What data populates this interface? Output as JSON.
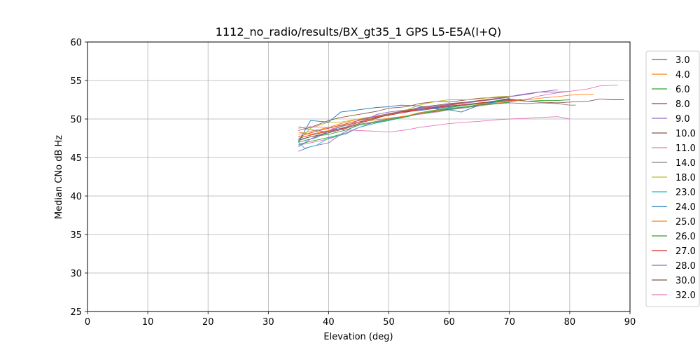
{
  "chart_data": {
    "type": "line",
    "title": "1112_no_radio/results/BX_gt35_1 GPS L5-E5A(I+Q)",
    "xlabel": "Elevation (deg)",
    "ylabel": "Median CNo dB Hz",
    "xlim": [
      0,
      90
    ],
    "ylim": [
      25,
      60
    ],
    "xticks": [
      0,
      10,
      20,
      30,
      40,
      50,
      60,
      70,
      80,
      90
    ],
    "yticks": [
      25,
      30,
      35,
      40,
      45,
      50,
      55,
      60
    ],
    "grid": true,
    "legend_position": "right",
    "series": [
      {
        "name": "3.0",
        "color": "#1f77b4",
        "x": [
          35,
          38,
          40,
          42,
          45,
          48,
          50,
          52,
          55,
          58,
          60,
          62,
          65,
          68,
          70
        ],
        "y": [
          47.0,
          47.6,
          48.4,
          49.0,
          49.6,
          50.2,
          50.6,
          50.9,
          51.1,
          51.4,
          51.6,
          51.8,
          52.0,
          52.3,
          52.7
        ]
      },
      {
        "name": "4.0",
        "color": "#ff7f0e",
        "x": [
          35,
          37,
          40,
          42,
          45,
          48,
          50,
          52,
          55,
          58,
          60,
          63,
          66,
          68,
          70
        ],
        "y": [
          48.0,
          48.4,
          48.9,
          49.4,
          50.0,
          50.4,
          50.6,
          51.0,
          51.4,
          51.7,
          51.9,
          52.2,
          52.5,
          52.7,
          52.8
        ]
      },
      {
        "name": "6.0",
        "color": "#2ca02c",
        "x": [
          35,
          37,
          40,
          43,
          45,
          48,
          50,
          53,
          55,
          58,
          60,
          63,
          65,
          68,
          70,
          73,
          75,
          78,
          80
        ],
        "y": [
          46.7,
          47.1,
          47.6,
          48.2,
          48.9,
          49.5,
          49.8,
          50.4,
          50.8,
          51.2,
          51.5,
          51.8,
          52.0,
          52.4,
          52.5,
          52.3,
          52.4,
          52.4,
          52.5
        ]
      },
      {
        "name": "8.0",
        "color": "#d62728",
        "x": [
          35,
          37,
          40,
          42,
          45,
          48,
          50,
          53,
          55,
          58,
          60,
          63,
          65,
          68
        ],
        "y": [
          47.7,
          48.2,
          48.8,
          49.2,
          49.8,
          50.3,
          50.7,
          51.0,
          51.3,
          51.5,
          51.8,
          52.1,
          52.3,
          52.6
        ]
      },
      {
        "name": "9.0",
        "color": "#9467bd",
        "x": [
          35,
          37,
          40,
          42,
          45,
          48,
          50,
          53,
          55,
          58,
          60,
          63,
          65,
          68,
          70,
          72,
          75,
          78,
          80
        ],
        "y": [
          45.8,
          46.4,
          46.9,
          48.0,
          49.4,
          50.6,
          50.9,
          51.2,
          51.3,
          51.6,
          51.9,
          52.1,
          52.3,
          52.7,
          52.9,
          53.2,
          53.5,
          53.5,
          53.6
        ]
      },
      {
        "name": "10.0",
        "color": "#8c564b",
        "x": [
          35,
          37,
          40,
          42,
          45,
          48,
          50,
          53,
          55,
          58,
          60,
          63,
          65,
          68,
          70
        ],
        "y": [
          48.5,
          48.9,
          49.8,
          50.2,
          50.6,
          51.0,
          51.4,
          51.6,
          52.0,
          52.3,
          52.2,
          52.5,
          52.7,
          52.8,
          52.9
        ]
      },
      {
        "name": "11.0",
        "color": "#e377c2",
        "x": [
          35,
          37,
          40,
          42,
          45,
          48,
          50,
          53,
          55,
          58,
          60,
          63,
          65,
          68,
          70,
          73,
          75,
          78,
          80,
          83,
          85,
          88
        ],
        "y": [
          46.6,
          46.9,
          47.4,
          47.9,
          48.9,
          49.7,
          50.1,
          50.4,
          50.6,
          50.9,
          51.2,
          51.5,
          51.7,
          52.0,
          52.2,
          52.6,
          53.0,
          53.4,
          53.6,
          53.9,
          54.3,
          54.4
        ]
      },
      {
        "name": "14.0",
        "color": "#7f7f7f",
        "x": [
          35,
          37,
          40,
          42,
          45,
          48,
          50,
          53,
          55,
          58,
          60,
          63,
          65,
          68,
          70,
          73,
          75,
          78,
          80,
          81
        ],
        "y": [
          49.0,
          48.6,
          48.3,
          48.7,
          49.3,
          49.7,
          50.0,
          50.4,
          50.7,
          51.0,
          51.2,
          51.5,
          51.8,
          52.0,
          52.1,
          52.0,
          52.1,
          52.0,
          51.8,
          51.8
        ]
      },
      {
        "name": "18.0",
        "color": "#bcbd22",
        "x": [
          35,
          37,
          40,
          42,
          45,
          48,
          50,
          53,
          55,
          58,
          60,
          63,
          65,
          68,
          71
        ],
        "y": [
          47.2,
          48.8,
          49.6,
          49.6,
          50.0,
          50.2,
          50.7,
          51.2,
          51.8,
          52.3,
          52.5,
          52.5,
          52.6,
          52.9,
          53.0
        ]
      },
      {
        "name": "23.0",
        "color": "#17becf",
        "x": [
          35,
          36,
          38,
          40,
          43,
          45,
          48,
          50,
          53,
          55,
          58,
          60,
          63,
          65,
          68,
          70
        ],
        "y": [
          47.0,
          46.2,
          46.6,
          47.5,
          48.1,
          48.9,
          49.5,
          49.8,
          50.3,
          50.7,
          51.1,
          51.4,
          51.6,
          51.9,
          52.2,
          52.4
        ]
      },
      {
        "name": "24.0",
        "color": "#1f77b4",
        "x": [
          35,
          37,
          40,
          42,
          45,
          48,
          50,
          52,
          55,
          58,
          60,
          62,
          65,
          68,
          70
        ],
        "y": [
          47.0,
          49.8,
          49.6,
          50.9,
          51.2,
          51.5,
          51.6,
          51.8,
          51.7,
          51.3,
          51.2,
          50.9,
          51.8,
          52.3,
          52.6
        ]
      },
      {
        "name": "25.0",
        "color": "#ff7f0e",
        "x": [
          35,
          37,
          40,
          42,
          45,
          48,
          50,
          53,
          55,
          58,
          60,
          63,
          65,
          68,
          70,
          73,
          75,
          78,
          80,
          82,
          84
        ],
        "y": [
          48.3,
          48.0,
          48.5,
          49.1,
          49.6,
          49.9,
          50.1,
          50.4,
          50.8,
          51.1,
          51.3,
          51.6,
          51.9,
          52.1,
          52.3,
          52.5,
          52.7,
          52.9,
          53.1,
          53.2,
          53.2
        ]
      },
      {
        "name": "26.0",
        "color": "#2ca02c",
        "x": [
          35,
          37,
          40,
          43,
          45,
          48,
          50,
          53,
          55,
          58,
          60,
          63,
          65,
          68,
          70
        ],
        "y": [
          47.2,
          47.7,
          48.0,
          48.6,
          49.2,
          49.6,
          49.9,
          50.3,
          50.7,
          51.0,
          51.3,
          51.6,
          51.8,
          52.0,
          52.2
        ]
      },
      {
        "name": "27.0",
        "color": "#d62728",
        "x": [
          35,
          37,
          40,
          43,
          45,
          48,
          50,
          53,
          55,
          58,
          60,
          63,
          65,
          68,
          70,
          72
        ],
        "y": [
          47.5,
          47.9,
          48.4,
          48.9,
          49.6,
          50.2,
          50.5,
          50.9,
          51.2,
          51.5,
          51.7,
          51.9,
          52.1,
          52.3,
          52.4,
          52.5
        ]
      },
      {
        "name": "28.0",
        "color": "#9467bd",
        "x": [
          35,
          37,
          40,
          43,
          45,
          48,
          50,
          53,
          55,
          58,
          60,
          63,
          65,
          68,
          70,
          73,
          75,
          78
        ],
        "y": [
          46.4,
          47.4,
          48.4,
          49.0,
          49.9,
          50.4,
          50.7,
          51.1,
          51.4,
          51.7,
          51.9,
          52.2,
          52.4,
          52.6,
          52.9,
          53.2,
          53.5,
          53.8
        ]
      },
      {
        "name": "30.0",
        "color": "#8c564b",
        "x": [
          35,
          37,
          40,
          43,
          45,
          48,
          50,
          53,
          55,
          58,
          60,
          63,
          65,
          68,
          70,
          73,
          75,
          78,
          80,
          83,
          85,
          87,
          89
        ],
        "y": [
          47.3,
          47.7,
          48.2,
          48.8,
          49.4,
          50.1,
          50.6,
          51.1,
          51.5,
          51.8,
          52.0,
          52.2,
          52.4,
          52.6,
          52.6,
          52.3,
          52.2,
          52.1,
          52.2,
          52.3,
          52.6,
          52.5,
          52.5
        ]
      },
      {
        "name": "32.0",
        "color": "#e377c2",
        "x": [
          35,
          37,
          40,
          42,
          45,
          48,
          50,
          53,
          55,
          58,
          60,
          63,
          65,
          68,
          70,
          73,
          75,
          78,
          80
        ],
        "y": [
          48.8,
          49.0,
          48.9,
          48.6,
          48.5,
          48.4,
          48.3,
          48.6,
          48.9,
          49.2,
          49.4,
          49.6,
          49.7,
          49.9,
          50.0,
          50.1,
          50.2,
          50.3,
          50.0
        ]
      }
    ]
  }
}
